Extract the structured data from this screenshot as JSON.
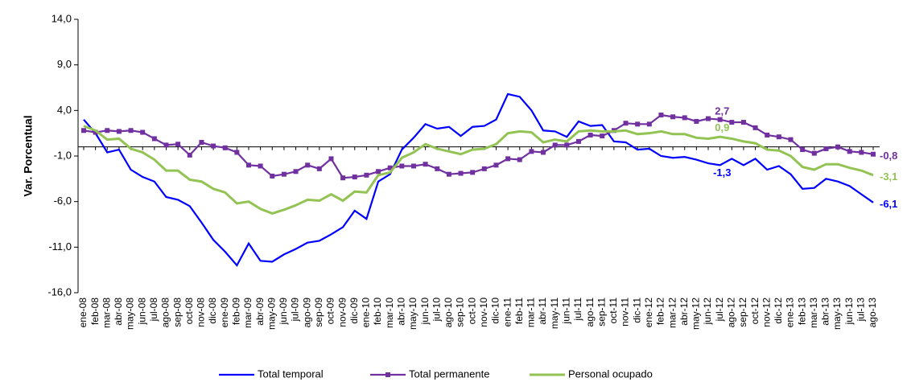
{
  "chart_data": {
    "type": "line",
    "y_label": "Var. Porcentual",
    "categories": [
      "ene-08",
      "feb-08",
      "mar-08",
      "abr-08",
      "may-08",
      "jun-08",
      "jul-08",
      "ago-08",
      "sep-08",
      "oct-08",
      "nov-08",
      "dic-08",
      "ene-09",
      "feb-09",
      "mar-09",
      "abr-09",
      "may-09",
      "jun-09",
      "jul-09",
      "ago-09",
      "sep-09",
      "oct-09",
      "nov-09",
      "dic-09",
      "ene-10",
      "feb-10",
      "mar-10",
      "abr-10",
      "may-10",
      "jun-10",
      "jul-10",
      "ago-10",
      "sep-10",
      "oct-10",
      "nov-10",
      "dic-10",
      "ene-11",
      "feb-11",
      "mar-11",
      "abr-11",
      "may-11",
      "jun-11",
      "jul-11",
      "ago-11",
      "sep-11",
      "oct-11",
      "nov-11",
      "dic-11",
      "ene-12",
      "feb-12",
      "mar-12",
      "abr-12",
      "may-12",
      "jun-12",
      "jul-12",
      "ago-12",
      "sep-12",
      "oct-12",
      "nov-12",
      "dic-12",
      "ene-13",
      "feb-13",
      "mar-13",
      "abr-13",
      "may-13",
      "jun-13",
      "jul-13",
      "ago-13"
    ],
    "ylim": [
      -16,
      14
    ],
    "yticks": [
      {
        "value": -16,
        "label": "-16,0"
      },
      {
        "value": -11,
        "label": "-11,0"
      },
      {
        "value": -6,
        "label": "-6,0"
      },
      {
        "value": -1,
        "label": "-1,0"
      },
      {
        "value": 4,
        "label": "4,0"
      },
      {
        "value": 9,
        "label": "9,0"
      },
      {
        "value": 14,
        "label": "14,0"
      }
    ],
    "series": [
      {
        "name": "Total temporal",
        "color": "#0000ff",
        "marker": false,
        "values": [
          3.0,
          1.5,
          -0.6,
          -0.3,
          -2.5,
          -3.3,
          -3.8,
          -5.5,
          -5.8,
          -6.5,
          -8.3,
          -10.2,
          -11.5,
          -13.0,
          -10.6,
          -12.5,
          -12.6,
          -11.8,
          -11.2,
          -10.5,
          -10.3,
          -9.6,
          -8.8,
          -7.0,
          -7.9,
          -3.8,
          -3.0,
          -0.3,
          1.0,
          2.5,
          2.0,
          2.2,
          1.2,
          2.2,
          2.3,
          3.0,
          5.8,
          5.5,
          4.0,
          1.8,
          1.7,
          1.1,
          2.8,
          2.3,
          2.4,
          0.6,
          0.5,
          -0.3,
          -0.2,
          -1.0,
          -1.2,
          -1.1,
          -1.4,
          -1.8,
          -2.0,
          -1.3,
          -2.0,
          -1.3,
          -2.5,
          -2.1,
          -3.0,
          -4.6,
          -4.5,
          -3.5,
          -3.8,
          -4.3,
          -5.2,
          -6.1
        ],
        "value_labels": [
          null,
          null,
          null,
          null,
          null,
          null,
          null,
          null,
          null,
          null,
          null,
          null,
          null,
          null,
          null,
          null,
          null,
          null,
          null,
          null,
          null,
          null,
          null,
          null,
          null,
          null,
          null,
          null,
          null,
          null,
          null,
          null,
          null,
          null,
          null,
          null,
          null,
          null,
          null,
          null,
          null,
          null,
          null,
          null,
          null,
          null,
          null,
          null,
          null,
          null,
          null,
          null,
          null,
          null,
          null,
          "-1,3",
          null,
          null,
          null,
          null,
          null,
          null,
          null,
          null,
          null,
          null,
          null,
          "-6,1"
        ]
      },
      {
        "name": "Total permanente",
        "color": "#7030a0",
        "marker": true,
        "values": [
          1.8,
          1.6,
          1.8,
          1.7,
          1.8,
          1.6,
          0.9,
          0.2,
          0.3,
          -0.9,
          0.5,
          0.1,
          -0.1,
          -0.6,
          -2.0,
          -2.1,
          -3.2,
          -3.0,
          -2.7,
          -2.0,
          -2.4,
          -1.3,
          -3.4,
          -3.3,
          -3.1,
          -2.7,
          -2.3,
          -2.1,
          -2.1,
          -1.9,
          -2.4,
          -3.0,
          -2.9,
          -2.8,
          -2.4,
          -2.0,
          -1.3,
          -1.4,
          -0.5,
          -0.6,
          0.2,
          0.2,
          0.6,
          1.3,
          1.2,
          1.8,
          2.6,
          2.5,
          2.5,
          3.5,
          3.3,
          3.2,
          2.8,
          3.1,
          3.0,
          2.7,
          2.7,
          2.1,
          1.3,
          1.1,
          0.8,
          -0.3,
          -0.7,
          -0.2,
          0.0,
          -0.5,
          -0.6,
          -0.8
        ],
        "value_labels": [
          null,
          null,
          null,
          null,
          null,
          null,
          null,
          null,
          null,
          null,
          null,
          null,
          null,
          null,
          null,
          null,
          null,
          null,
          null,
          null,
          null,
          null,
          null,
          null,
          null,
          null,
          null,
          null,
          null,
          null,
          null,
          null,
          null,
          null,
          null,
          null,
          null,
          null,
          null,
          null,
          null,
          null,
          null,
          null,
          null,
          null,
          null,
          null,
          null,
          null,
          null,
          null,
          null,
          null,
          null,
          "2,7",
          null,
          null,
          null,
          null,
          null,
          null,
          null,
          null,
          null,
          null,
          null,
          "-0,8"
        ]
      },
      {
        "name": "Personal ocupado",
        "color": "#92c353",
        "marker": false,
        "values": [
          2.3,
          1.8,
          0.8,
          0.9,
          -0.2,
          -0.6,
          -1.4,
          -2.6,
          -2.6,
          -3.6,
          -3.8,
          -4.6,
          -5.0,
          -6.2,
          -6.0,
          -6.8,
          -7.3,
          -6.9,
          -6.4,
          -5.8,
          -5.9,
          -5.2,
          -5.9,
          -4.9,
          -5.0,
          -3.1,
          -2.8,
          -1.2,
          -0.6,
          0.3,
          -0.2,
          -0.5,
          -0.8,
          -0.3,
          -0.2,
          0.3,
          1.5,
          1.7,
          1.6,
          0.5,
          0.8,
          0.6,
          1.7,
          1.8,
          1.7,
          1.7,
          1.8,
          1.4,
          1.5,
          1.7,
          1.4,
          1.4,
          1.0,
          0.9,
          1.1,
          0.9,
          0.6,
          0.4,
          -0.3,
          -0.4,
          -1.0,
          -2.2,
          -2.5,
          -1.9,
          -1.9,
          -2.3,
          -2.6,
          -3.1
        ],
        "value_labels": [
          null,
          null,
          null,
          null,
          null,
          null,
          null,
          null,
          null,
          null,
          null,
          null,
          null,
          null,
          null,
          null,
          null,
          null,
          null,
          null,
          null,
          null,
          null,
          null,
          null,
          null,
          null,
          null,
          null,
          null,
          null,
          null,
          null,
          null,
          null,
          null,
          null,
          null,
          null,
          null,
          null,
          null,
          null,
          null,
          null,
          null,
          null,
          null,
          null,
          null,
          null,
          null,
          null,
          null,
          null,
          "0,9",
          null,
          null,
          null,
          null,
          null,
          null,
          null,
          null,
          null,
          null,
          null,
          "-3,1"
        ]
      }
    ]
  }
}
